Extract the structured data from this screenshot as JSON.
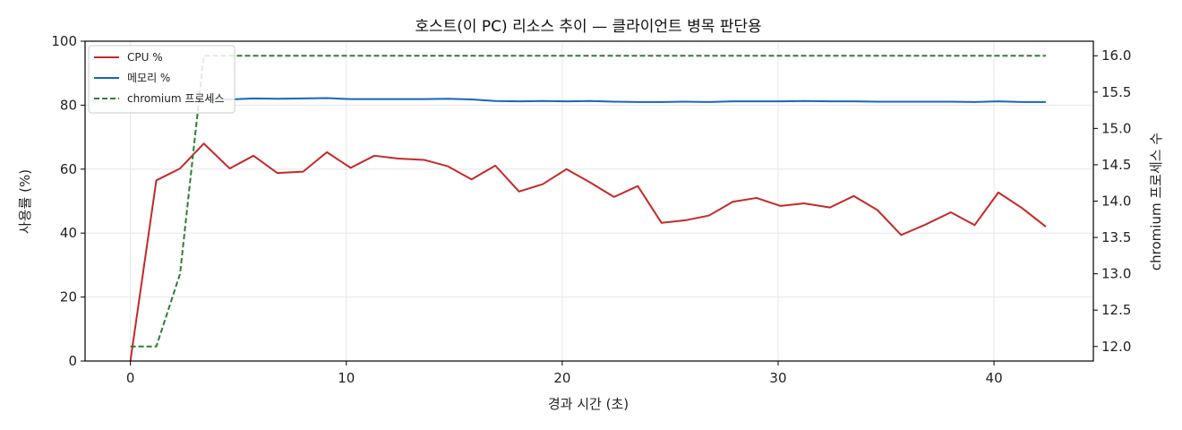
{
  "chart_data": {
    "type": "line",
    "title": "호스트(이 PC) 리소스 추이 — 클라이언트 병목 판단용",
    "xlabel": "경과 시간 (초)",
    "ylabel": "사용률 (%)",
    "y2label": "chromium 프로세스 수",
    "xlim": [
      -2.1,
      44.6
    ],
    "ylim": [
      0,
      100
    ],
    "y2lim": [
      11.8,
      16.2
    ],
    "xticks": [
      0,
      10,
      20,
      30,
      40
    ],
    "yticks": [
      0,
      20,
      40,
      60,
      80,
      100
    ],
    "y2ticks": [
      12.0,
      12.5,
      13.0,
      13.5,
      14.0,
      14.5,
      15.0,
      15.5,
      16.0
    ],
    "y2tick_labels": [
      "12.0",
      "12.5",
      "13.0",
      "13.5",
      "14.0",
      "14.5",
      "15.0",
      "15.5",
      "16.0"
    ],
    "grid": true,
    "legend_position": "top-left",
    "x": [
      0,
      1.2,
      2.3,
      3.4,
      4.6,
      5.7,
      6.8,
      8.0,
      9.1,
      10.2,
      11.3,
      12.4,
      13.6,
      14.7,
      15.8,
      16.9,
      18.0,
      19.1,
      20.2,
      21.3,
      22.4,
      23.5,
      24.6,
      25.7,
      26.8,
      27.9,
      29.0,
      30.1,
      31.2,
      32.4,
      33.5,
      34.6,
      35.7,
      36.8,
      38.0,
      39.1,
      40.2,
      41.3,
      42.4
    ],
    "series": [
      {
        "name": "CPU %",
        "axis": "left",
        "color": "#c62828",
        "style": "solid",
        "values": [
          0,
          56.5,
          60.2,
          68.0,
          60.2,
          64.2,
          58.8,
          59.2,
          65.3,
          60.4,
          64.2,
          63.3,
          62.9,
          60.9,
          56.8,
          61.1,
          53.0,
          55.3,
          60.0,
          55.8,
          51.3,
          54.7,
          43.2,
          44.0,
          45.5,
          49.8,
          51.0,
          48.5,
          49.3,
          48.0,
          51.6,
          47.2,
          39.4,
          42.6,
          46.5,
          42.5,
          52.7,
          47.8,
          42.0
        ]
      },
      {
        "name": "메모리 %",
        "axis": "left",
        "color": "#1565c0",
        "style": "solid",
        "values": [
          null,
          null,
          null,
          81.6,
          81.8,
          82.1,
          82.0,
          82.1,
          82.2,
          81.9,
          81.9,
          81.9,
          81.9,
          82.0,
          81.8,
          81.3,
          81.2,
          81.3,
          81.2,
          81.3,
          81.1,
          81.0,
          81.0,
          81.1,
          81.0,
          81.2,
          81.2,
          81.2,
          81.3,
          81.2,
          81.2,
          81.1,
          81.1,
          81.1,
          81.1,
          81.0,
          81.2,
          81.0,
          81.0
        ]
      },
      {
        "name": "chromium 프로세스",
        "axis": "right",
        "color": "#2e7d32",
        "style": "dashed",
        "values": [
          12,
          12,
          13,
          16,
          16,
          16,
          16,
          16,
          16,
          16,
          16,
          16,
          16,
          16,
          16,
          16,
          16,
          16,
          16,
          16,
          16,
          16,
          16,
          16,
          16,
          16,
          16,
          16,
          16,
          16,
          16,
          16,
          16,
          16,
          16,
          16,
          16,
          16,
          16
        ]
      }
    ]
  }
}
